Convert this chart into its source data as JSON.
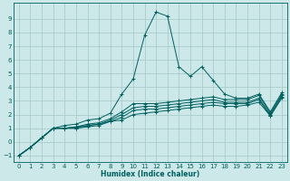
{
  "xlabel": "Humidex (Indice chaleur)",
  "bg_color": "#cce8e8",
  "line_color": "#006060",
  "grid_color": "#aacccc",
  "xlim": [
    -0.5,
    23.5
  ],
  "ylim": [
    -1.5,
    10.2
  ],
  "xticks": [
    0,
    1,
    2,
    3,
    4,
    5,
    6,
    7,
    8,
    9,
    10,
    11,
    12,
    13,
    14,
    15,
    16,
    17,
    18,
    19,
    20,
    21,
    22,
    23
  ],
  "yticks": [
    -1,
    0,
    1,
    2,
    3,
    4,
    5,
    6,
    7,
    8,
    9
  ],
  "x": [
    0,
    1,
    2,
    3,
    4,
    5,
    6,
    7,
    8,
    9,
    10,
    11,
    12,
    13,
    14,
    15,
    16,
    17,
    18,
    19,
    20,
    21,
    22,
    23
  ],
  "lines": [
    [
      -1.0,
      -0.4,
      0.3,
      1.0,
      1.2,
      1.3,
      1.6,
      1.7,
      2.1,
      3.5,
      4.6,
      7.8,
      9.5,
      9.2,
      5.5,
      4.8,
      5.5,
      4.5,
      3.5,
      3.2,
      3.2,
      3.5,
      2.2,
      3.6
    ],
    [
      -1.0,
      -0.4,
      0.3,
      1.0,
      1.0,
      1.1,
      1.3,
      1.4,
      1.7,
      2.2,
      2.8,
      2.8,
      2.8,
      2.9,
      3.0,
      3.1,
      3.2,
      3.3,
      3.1,
      3.1,
      3.1,
      3.4,
      2.1,
      3.5
    ],
    [
      -1.0,
      -0.4,
      0.3,
      1.0,
      1.0,
      1.1,
      1.2,
      1.3,
      1.6,
      2.0,
      2.5,
      2.6,
      2.6,
      2.7,
      2.8,
      2.9,
      3.0,
      3.1,
      2.9,
      2.9,
      2.9,
      3.2,
      2.0,
      3.4
    ],
    [
      -1.0,
      -0.4,
      0.3,
      1.0,
      1.0,
      1.0,
      1.2,
      1.3,
      1.5,
      1.8,
      2.3,
      2.4,
      2.4,
      2.5,
      2.6,
      2.7,
      2.8,
      2.9,
      2.8,
      2.8,
      2.8,
      3.1,
      1.9,
      3.3
    ],
    [
      -1.0,
      -0.4,
      0.3,
      1.0,
      1.0,
      1.0,
      1.1,
      1.2,
      1.5,
      1.6,
      2.0,
      2.1,
      2.2,
      2.3,
      2.4,
      2.5,
      2.6,
      2.7,
      2.6,
      2.6,
      2.7,
      2.9,
      1.9,
      3.2
    ]
  ]
}
